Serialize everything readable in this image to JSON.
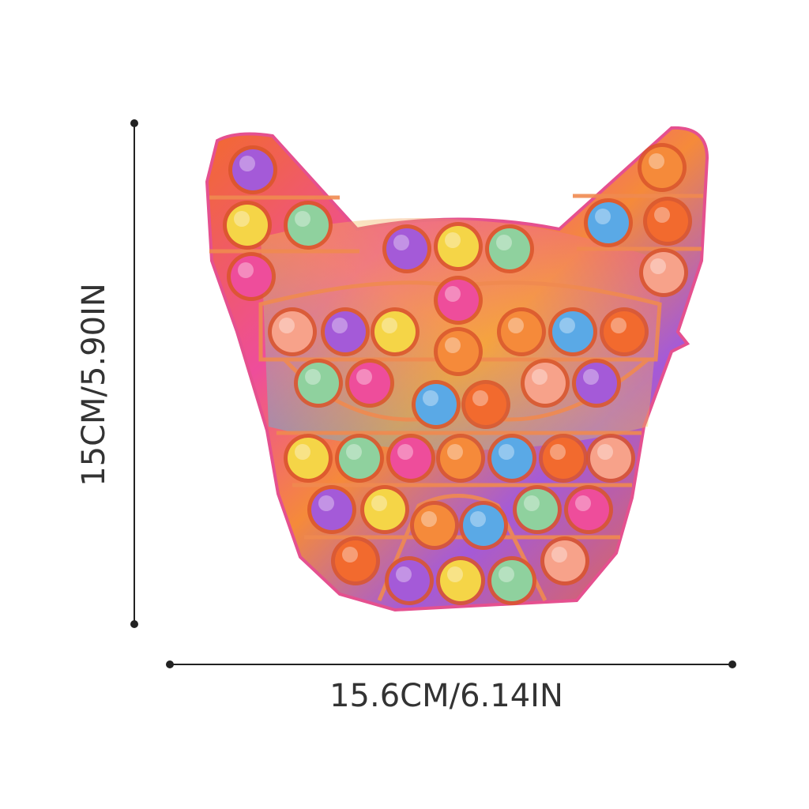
{
  "dimensions": {
    "height_label": "15CM/5.90IN",
    "width_label": "15.6CM/6.14IN"
  },
  "product": {
    "icon": "french-bulldog-pop-it-toy",
    "colors": {
      "base": "#f26a2e",
      "pink": "#ee4d9b",
      "purple": "#a45ad8",
      "blue": "#5aa9e6",
      "yellow": "#f5d547",
      "green": "#8fd19e",
      "line": "#222222",
      "text": "#333333"
    }
  }
}
